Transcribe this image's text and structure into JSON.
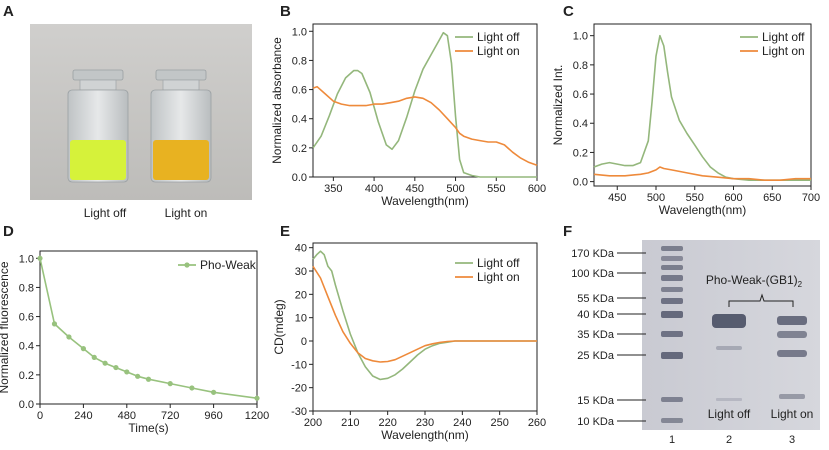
{
  "panels": {
    "A": {
      "label": "A",
      "vials": [
        {
          "caption": "Light off",
          "color": "#d6f23a"
        },
        {
          "caption": "Light on",
          "color": "#e8b221"
        }
      ]
    },
    "F": {
      "label": "F",
      "ladder_labels": [
        "170 KDa",
        "100 KDa",
        "55 KDa",
        "40 KDa",
        "35 KDa",
        "25 KDa",
        "15 KDa",
        "10 KDa"
      ],
      "protein_label": "Pho-Weak-(GB1)",
      "protein_subscript": "2",
      "lane_captions": [
        "Light off",
        "Light on"
      ],
      "lane_numbers": [
        "1",
        "2",
        "3"
      ]
    }
  },
  "colors": {
    "light_off": "#94b77c",
    "light_on": "#ee8a3b",
    "pho_weak": "#98c27e"
  },
  "chart_data": [
    {
      "id": "B",
      "label": "B",
      "type": "line",
      "xlabel": "Wavelength(nm)",
      "ylabel": "Normalized absorbance",
      "xlim": [
        325,
        600
      ],
      "ylim": [
        0,
        1.05
      ],
      "xticks": [
        350,
        400,
        450,
        500,
        550,
        600
      ],
      "yticks": [
        0.0,
        0.2,
        0.4,
        0.6,
        0.8,
        1.0
      ],
      "legend": "top-right",
      "series": [
        {
          "name": "Light off",
          "color_key": "light_off",
          "x": [
            325,
            335,
            345,
            355,
            365,
            375,
            380,
            385,
            395,
            405,
            415,
            422,
            430,
            440,
            450,
            460,
            470,
            480,
            485,
            490,
            495,
            500,
            505,
            510,
            520,
            530,
            540,
            560,
            580,
            600
          ],
          "y": [
            0.2,
            0.28,
            0.42,
            0.57,
            0.68,
            0.73,
            0.73,
            0.71,
            0.58,
            0.38,
            0.22,
            0.19,
            0.25,
            0.41,
            0.59,
            0.74,
            0.84,
            0.94,
            0.99,
            0.97,
            0.78,
            0.42,
            0.12,
            0.03,
            0.01,
            0.0,
            0.0,
            0.0,
            0.0,
            0.0
          ]
        },
        {
          "name": "Light on",
          "color_key": "light_on",
          "x": [
            325,
            330,
            340,
            350,
            360,
            370,
            380,
            390,
            400,
            410,
            420,
            430,
            440,
            450,
            460,
            470,
            480,
            490,
            500,
            505,
            510,
            520,
            530,
            540,
            550,
            560,
            570,
            580,
            590,
            600
          ],
          "y": [
            0.61,
            0.62,
            0.57,
            0.52,
            0.5,
            0.49,
            0.49,
            0.49,
            0.5,
            0.5,
            0.51,
            0.52,
            0.54,
            0.55,
            0.54,
            0.51,
            0.46,
            0.4,
            0.34,
            0.3,
            0.28,
            0.26,
            0.25,
            0.24,
            0.24,
            0.22,
            0.17,
            0.13,
            0.1,
            0.08
          ]
        }
      ]
    },
    {
      "id": "C",
      "label": "C",
      "type": "line",
      "xlabel": "Wavelength(nm)",
      "ylabel": "Normalized Int.",
      "xlim": [
        420,
        700
      ],
      "ylim": [
        -0.03,
        1.08
      ],
      "xticks": [
        450,
        500,
        550,
        600,
        650,
        700
      ],
      "yticks": [
        0.0,
        0.2,
        0.4,
        0.6,
        0.8,
        1.0
      ],
      "legend": "top-right",
      "series": [
        {
          "name": "Light off",
          "color_key": "light_off",
          "x": [
            420,
            430,
            440,
            450,
            460,
            470,
            480,
            490,
            495,
            500,
            505,
            510,
            515,
            520,
            530,
            540,
            550,
            560,
            570,
            580,
            590,
            600,
            620,
            650,
            700
          ],
          "y": [
            0.1,
            0.12,
            0.13,
            0.12,
            0.11,
            0.11,
            0.13,
            0.28,
            0.55,
            0.86,
            1.0,
            0.93,
            0.75,
            0.58,
            0.42,
            0.33,
            0.25,
            0.17,
            0.1,
            0.06,
            0.03,
            0.02,
            0.01,
            0.01,
            0.01
          ]
        },
        {
          "name": "Light on",
          "color_key": "light_on",
          "x": [
            420,
            440,
            460,
            480,
            490,
            500,
            505,
            510,
            520,
            530,
            540,
            560,
            580,
            600,
            620,
            640,
            660,
            680,
            700
          ],
          "y": [
            0.05,
            0.04,
            0.04,
            0.05,
            0.06,
            0.08,
            0.1,
            0.09,
            0.08,
            0.07,
            0.06,
            0.04,
            0.03,
            0.02,
            0.02,
            0.01,
            0.01,
            0.02,
            0.02
          ]
        }
      ]
    },
    {
      "id": "D",
      "label": "D",
      "type": "line",
      "xlabel": "Time(s)",
      "ylabel": "Normalized fluorescence",
      "xlim": [
        0,
        1200
      ],
      "ylim": [
        0,
        1.05
      ],
      "xticks": [
        0,
        240,
        480,
        720,
        960,
        1200
      ],
      "yticks": [
        0.0,
        0.2,
        0.4,
        0.6,
        0.8,
        1.0
      ],
      "legend": "top-right",
      "markers": true,
      "series": [
        {
          "name": "Pho-Weak",
          "color_key": "pho_weak",
          "x": [
            0,
            80,
            160,
            240,
            300,
            360,
            420,
            480,
            540,
            600,
            720,
            840,
            960,
            1200
          ],
          "y": [
            1.0,
            0.55,
            0.46,
            0.38,
            0.32,
            0.28,
            0.25,
            0.22,
            0.19,
            0.17,
            0.14,
            0.11,
            0.08,
            0.04
          ]
        }
      ]
    },
    {
      "id": "E",
      "label": "E",
      "type": "line",
      "xlabel": "Wavelength(nm)",
      "ylabel": "CD(mdeg)",
      "xlim": [
        200,
        260
      ],
      "ylim": [
        -30,
        42
      ],
      "xticks": [
        200,
        210,
        220,
        230,
        240,
        250,
        260
      ],
      "yticks": [
        -30,
        -20,
        -10,
        0,
        10,
        20,
        30,
        40
      ],
      "legend": "top-right",
      "series": [
        {
          "name": "Light off",
          "color_key": "light_off",
          "x": [
            200,
            201,
            202,
            203,
            204,
            205,
            206,
            208,
            210,
            212,
            214,
            216,
            218,
            220,
            222,
            224,
            226,
            228,
            230,
            232,
            234,
            236,
            238,
            240,
            245,
            250,
            255,
            260
          ],
          "y": [
            35,
            37,
            38.5,
            37,
            32,
            30,
            24,
            13,
            3,
            -5,
            -11,
            -15,
            -16.5,
            -16,
            -14.5,
            -12,
            -9,
            -6,
            -3.5,
            -2,
            -1,
            -0.5,
            0,
            0,
            0,
            0,
            0,
            0
          ]
        },
        {
          "name": "Light on",
          "color_key": "light_on",
          "x": [
            200,
            202,
            204,
            206,
            208,
            210,
            212,
            214,
            216,
            218,
            220,
            222,
            224,
            226,
            228,
            230,
            232,
            234,
            236,
            238,
            240,
            245,
            250,
            255,
            260
          ],
          "y": [
            32,
            27,
            19,
            11,
            4,
            -1,
            -5,
            -7.5,
            -8.5,
            -9,
            -8.8,
            -8,
            -6.5,
            -5,
            -3.5,
            -2,
            -1.2,
            -0.6,
            -0.2,
            0,
            0,
            0,
            0,
            0,
            0
          ]
        }
      ]
    }
  ]
}
